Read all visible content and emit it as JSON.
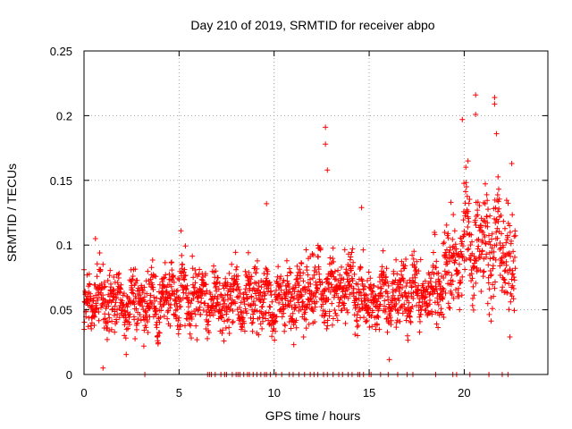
{
  "chart_data": {
    "type": "scatter",
    "title": "Day 210 of 2019, SRMTID for receiver abpo",
    "xlabel": "GPS time / hours",
    "ylabel": "SRMTID / TECUs",
    "xlim": [
      0,
      24.4
    ],
    "ylim": [
      0,
      0.25
    ],
    "grid": true,
    "marker": "plus",
    "color": "#ff0000",
    "x_ticks": [
      0,
      5,
      10,
      15,
      20
    ],
    "x_tick_labels": [
      "0",
      "5",
      "10",
      "15",
      "20"
    ],
    "y_ticks": [
      0,
      0.05,
      0.1,
      0.15,
      0.2,
      0.25
    ],
    "y_tick_labels": [
      "0",
      "0.05",
      "0.1",
      "0.15",
      "0.2",
      "0.25"
    ],
    "series": [
      {
        "name": "SRMTID",
        "profile_hours": [
          0,
          1,
          2,
          3,
          4,
          5,
          6,
          7,
          8,
          9,
          10,
          11,
          12,
          13,
          14,
          15,
          16,
          17,
          18,
          19,
          20,
          21,
          22,
          22.7
        ],
        "profile_typical_values": [
          0.055,
          0.06,
          0.055,
          0.055,
          0.055,
          0.06,
          0.06,
          0.055,
          0.06,
          0.06,
          0.055,
          0.06,
          0.07,
          0.065,
          0.065,
          0.055,
          0.06,
          0.065,
          0.06,
          0.075,
          0.1,
          0.105,
          0.095,
          0.09
        ],
        "notable_points": [
          {
            "x": 1.0,
            "y": 0.005
          },
          {
            "x": 0.6,
            "y": 0.105
          },
          {
            "x": 5.1,
            "y": 0.111
          },
          {
            "x": 9.6,
            "y": 0.132
          },
          {
            "x": 12.7,
            "y": 0.191
          },
          {
            "x": 12.7,
            "y": 0.178
          },
          {
            "x": 12.8,
            "y": 0.158
          },
          {
            "x": 14.6,
            "y": 0.129
          },
          {
            "x": 19.3,
            "y": 0.133
          },
          {
            "x": 19.9,
            "y": 0.197
          },
          {
            "x": 20.2,
            "y": 0.165
          },
          {
            "x": 20.6,
            "y": 0.216
          },
          {
            "x": 20.6,
            "y": 0.201
          },
          {
            "x": 21.6,
            "y": 0.214
          },
          {
            "x": 21.6,
            "y": 0.209
          },
          {
            "x": 21.7,
            "y": 0.186
          },
          {
            "x": 22.5,
            "y": 0.163
          },
          {
            "x": 22.4,
            "y": 0.029
          }
        ],
        "zero_value_hours": [
          3.2,
          6.5,
          6.6,
          6.7,
          6.9,
          7.2,
          7.4,
          7.5,
          7.8,
          8.0,
          8.1,
          8.2,
          8.4,
          8.6,
          8.7,
          8.9,
          9.1,
          9.3,
          9.5,
          9.6,
          9.8,
          10.1,
          10.4,
          10.8,
          11.0,
          11.3,
          11.6,
          11.9,
          12.1,
          12.3,
          12.6,
          12.8,
          13.1,
          13.4,
          13.6,
          13.9,
          14.1,
          14.4,
          14.5,
          14.7,
          15.0,
          15.1,
          15.6,
          16.0,
          16.5,
          17.0,
          17.3,
          18.5,
          19.4,
          19.6,
          20.3,
          21.3,
          22.0,
          22.3
        ]
      }
    ]
  }
}
